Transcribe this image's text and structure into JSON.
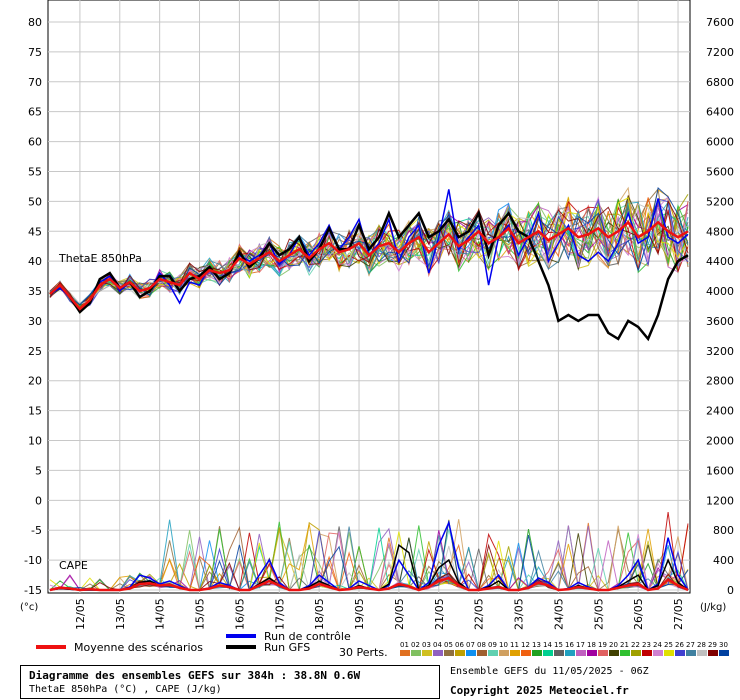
{
  "chart_data": {
    "type": "line",
    "title": "Diagramme des ensembles GEFS sur 384h : 38.8N 0.6W",
    "subtitle": "ThetaE 850hPa (°C) , CAPE (J/kg)",
    "ylabel_left": "(°c)",
    "ylabel_right": "(J/kg)",
    "ylim_left": [
      -15,
      80
    ],
    "ylim_right": [
      0,
      7600
    ],
    "yticks_left": [
      80,
      75,
      70,
      65,
      60,
      55,
      50,
      45,
      40,
      35,
      30,
      25,
      20,
      15,
      10,
      5,
      0,
      -5,
      -10,
      -15
    ],
    "yticks_right": [
      7600,
      7200,
      6800,
      6400,
      6000,
      5600,
      5200,
      4800,
      4400,
      4000,
      3600,
      3200,
      2800,
      2400,
      2000,
      1600,
      1200,
      800,
      400,
      0
    ],
    "xticks": [
      "12/05",
      "13/05",
      "14/05",
      "15/05",
      "16/05",
      "17/05",
      "18/05",
      "19/05",
      "20/05",
      "21/05",
      "22/05",
      "23/05",
      "24/05",
      "25/05",
      "26/05",
      "27/05"
    ],
    "grid": true,
    "panel_labels": [
      "ThetaE 850hPa",
      "CAPE"
    ],
    "x_hours": [
      0,
      6,
      12,
      18,
      24,
      30,
      36,
      42,
      48,
      54,
      60,
      66,
      72,
      78,
      84,
      90,
      96,
      102,
      108,
      114,
      120,
      126,
      132,
      138,
      144,
      150,
      156,
      162,
      168,
      174,
      180,
      186,
      192,
      198,
      204,
      210,
      216,
      222,
      228,
      234,
      240,
      246,
      252,
      258,
      264,
      270,
      276,
      282,
      288,
      294,
      300,
      306,
      312,
      318,
      324,
      330,
      336,
      342,
      348,
      354,
      360,
      366,
      372,
      378,
      384
    ],
    "thetae_series": [
      {
        "name": "Moyenne des scénarios",
        "color": "#ee1111",
        "values": [
          34.5,
          36,
          34,
          32,
          33.5,
          36,
          37,
          35.5,
          36.5,
          35,
          35.5,
          37,
          36.5,
          36,
          38,
          37,
          38.5,
          38,
          38.5,
          40.5,
          39.5,
          40.5,
          41.5,
          40,
          41,
          42,
          40.5,
          42,
          43,
          41.5,
          42,
          43,
          41,
          42.5,
          43,
          41.5,
          43,
          44,
          41.5,
          43,
          44.5,
          42.5,
          43.5,
          45,
          43,
          44,
          45.5,
          43,
          44,
          45,
          43.5,
          44.5,
          45.5,
          44,
          44.5,
          45.5,
          44,
          45,
          46.5,
          44,
          45,
          46.5,
          45,
          44,
          45
        ]
      },
      {
        "name": "Run de contrôle",
        "color": "#0000ee",
        "values": [
          34.5,
          35.5,
          34,
          32,
          33,
          36.5,
          37.5,
          35,
          36.5,
          34,
          35,
          38,
          36,
          33,
          36.5,
          36,
          39,
          37,
          38,
          41,
          40,
          41,
          43,
          39.5,
          41,
          44,
          41,
          43,
          46,
          42,
          44,
          47,
          41,
          43,
          47,
          40,
          44,
          46,
          38,
          44,
          52,
          42,
          44,
          46,
          36,
          44,
          46,
          41,
          44,
          48,
          40,
          43,
          46,
          41,
          40,
          41.5,
          40,
          43,
          48,
          43,
          44,
          50.5,
          44,
          43,
          44.5
        ]
      },
      {
        "name": "Run GFS",
        "color": "#000000",
        "values": [
          34.5,
          36,
          34,
          31.5,
          33,
          37,
          38,
          35.5,
          36.5,
          34,
          35,
          37.5,
          37.5,
          35,
          37,
          37.5,
          39,
          37,
          38,
          41.5,
          39,
          40.5,
          43,
          41,
          42,
          44,
          40,
          42,
          45.5,
          42,
          42,
          46,
          42,
          44,
          48,
          44,
          46,
          48,
          44,
          45,
          47,
          44,
          45,
          48,
          41,
          46,
          48,
          45,
          44,
          40,
          36,
          30,
          31,
          30,
          31,
          31,
          28,
          27,
          30,
          29,
          27,
          31,
          37,
          40,
          41
        ]
      }
    ],
    "cape_series": [
      {
        "name": "Moyenne des scénarios",
        "color": "#ee1111",
        "values": [
          0,
          30,
          20,
          0,
          10,
          0,
          0,
          0,
          20,
          80,
          90,
          60,
          70,
          30,
          0,
          0,
          20,
          60,
          40,
          0,
          0,
          60,
          120,
          60,
          0,
          0,
          20,
          80,
          40,
          0,
          10,
          40,
          20,
          0,
          20,
          80,
          50,
          0,
          40,
          120,
          160,
          60,
          0,
          0,
          20,
          40,
          0,
          0,
          30,
          100,
          60,
          0,
          10,
          40,
          20,
          0,
          0,
          30,
          60,
          80,
          0,
          20,
          140,
          60,
          0
        ]
      },
      {
        "name": "Run de contrôle",
        "color": "#0000ee",
        "values": [
          0,
          20,
          10,
          0,
          0,
          0,
          0,
          0,
          40,
          200,
          160,
          80,
          120,
          60,
          0,
          0,
          30,
          100,
          60,
          0,
          0,
          200,
          400,
          100,
          0,
          0,
          60,
          200,
          100,
          0,
          20,
          120,
          60,
          0,
          60,
          400,
          200,
          0,
          100,
          600,
          900,
          300,
          0,
          0,
          60,
          200,
          0,
          0,
          40,
          160,
          100,
          0,
          20,
          100,
          40,
          0,
          0,
          60,
          200,
          400,
          0,
          80,
          700,
          200,
          0
        ]
      },
      {
        "name": "Run GFS",
        "color": "#000000",
        "values": [
          0,
          20,
          10,
          0,
          0,
          0,
          0,
          0,
          20,
          100,
          120,
          60,
          80,
          30,
          0,
          0,
          20,
          60,
          40,
          0,
          0,
          80,
          160,
          60,
          0,
          0,
          40,
          120,
          60,
          0,
          10,
          60,
          20,
          0,
          80,
          600,
          500,
          0,
          60,
          300,
          400,
          100,
          0,
          0,
          40,
          120,
          0,
          0,
          30,
          100,
          60,
          0,
          10,
          60,
          20,
          0,
          0,
          40,
          120,
          200,
          0,
          60,
          400,
          100,
          0
        ]
      }
    ]
  },
  "legend": {
    "mean_label": "Moyenne des scénarios",
    "control_label": "Run de contrôle",
    "gfs_label": "Run GFS",
    "perts_label": "30 Perts.",
    "perts_numbers": [
      "01",
      "02",
      "03",
      "04",
      "05",
      "06",
      "07",
      "08",
      "09",
      "10",
      "11",
      "12",
      "13",
      "14",
      "15",
      "16",
      "17",
      "18",
      "19",
      "20",
      "21",
      "22",
      "23",
      "24",
      "25",
      "26",
      "27",
      "28",
      "29",
      "30"
    ],
    "perts_colors": [
      "#e07020",
      "#80c060",
      "#d0c020",
      "#9060c0",
      "#907040",
      "#c0a000",
      "#1090f0",
      "#a06030",
      "#60d0b0",
      "#d0a060",
      "#e0a000",
      "#f06010",
      "#20a020",
      "#00d090",
      "#606060",
      "#20a0c0",
      "#c060c0",
      "#a000a0",
      "#e06060",
      "#404000",
      "#30c030",
      "#a0a000",
      "#c00000",
      "#d080d0",
      "#e0e000",
      "#4040d0",
      "#4080a0",
      "#c0c0c0",
      "#800000",
      "#0040a0"
    ]
  },
  "footer": {
    "title": "Diagramme des ensembles GEFS sur 384h : 38.8N 0.6W",
    "subtitle": "ThetaE 850hPa (°C) , CAPE (J/kg)",
    "ensemble": "Ensemble GEFS du 11/05/2025 - 06Z",
    "copyright": "Copyright 2025 Meteociel.fr"
  }
}
